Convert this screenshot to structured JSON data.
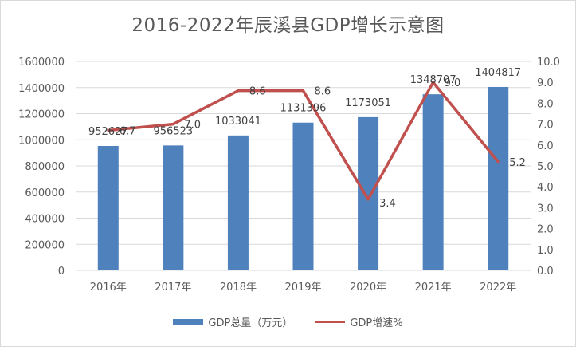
{
  "chart_data": {
    "type": "bar+line",
    "title": "2016-2022年辰溪县GDP增长示意图",
    "categories": [
      "2016年",
      "2017年",
      "2018年",
      "2019年",
      "2020年",
      "2021年",
      "2022年"
    ],
    "series": [
      {
        "name": "GDP总量（万元）",
        "type": "bar",
        "axis": "left",
        "values": [
          952627,
          956523,
          1033041,
          1131396,
          1173051,
          1348707,
          1404817
        ],
        "labels": [
          "952627",
          "956523",
          "1033041",
          "1131396",
          "1173051",
          "1348707",
          "1404817"
        ]
      },
      {
        "name": "GDP增速%",
        "type": "line",
        "axis": "right",
        "values": [
          6.7,
          7.0,
          8.6,
          8.6,
          3.4,
          9.0,
          5.2
        ],
        "labels": [
          "6.7",
          "7.0",
          "8.6",
          "8.6",
          "3.4",
          "9.0",
          "5.2"
        ]
      }
    ],
    "y_left": {
      "range": [
        0,
        1600000
      ],
      "ticks": [
        "0",
        "200000",
        "400000",
        "600000",
        "800000",
        "1000000",
        "1200000",
        "1400000",
        "1600000"
      ]
    },
    "y_right": {
      "range": [
        0,
        10
      ],
      "ticks": [
        "0.0",
        "1.0",
        "2.0",
        "3.0",
        "4.0",
        "5.0",
        "6.0",
        "7.0",
        "8.0",
        "9.0",
        "10.0"
      ]
    },
    "grid": true,
    "legend": "bottom",
    "colors": {
      "bar": "#4f81bd",
      "line": "#c0504d",
      "grid": "#d9d9d9",
      "text": "#595959"
    }
  }
}
